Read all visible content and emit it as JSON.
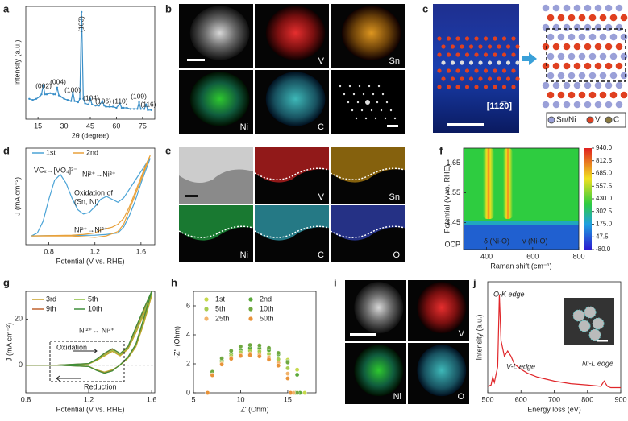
{
  "chart_data": [
    {
      "type": "line",
      "panel_label": "a",
      "xlabel": "2θ (degree)",
      "ylabel": "Intensity (a.u.)",
      "xlim": [
        8,
        82
      ],
      "ylim": [
        0,
        100
      ],
      "xticks": [
        15,
        30,
        45,
        60,
        75
      ],
      "peak_labels": [
        "(002)",
        "(004)",
        "(100)",
        "(103)",
        "(104)",
        "(106)",
        "(110)",
        "(109)",
        "(116)"
      ],
      "series": [
        {
          "color": "#3a8fc8",
          "marker": true,
          "x": [
            10,
            12,
            14,
            16,
            17,
            18,
            19,
            20,
            22,
            24,
            25,
            26,
            27,
            28,
            30,
            32,
            34,
            35,
            36,
            38,
            39,
            40,
            41,
            42,
            44,
            45,
            46,
            48,
            50,
            52,
            53,
            54,
            56,
            58,
            60,
            62,
            63,
            64,
            66,
            68,
            70,
            72,
            73,
            74,
            76,
            77,
            78,
            80
          ],
          "values": [
            18,
            17,
            18,
            20,
            22,
            30,
            22,
            22,
            23,
            22,
            22,
            28,
            21,
            20,
            18,
            17,
            16,
            24,
            16,
            15,
            18,
            95,
            18,
            14,
            13,
            18,
            13,
            12,
            12,
            16,
            12,
            11,
            11,
            11,
            10,
            14,
            10,
            10,
            10,
            9,
            9,
            9,
            15,
            9,
            9,
            13,
            8,
            8
          ]
        }
      ]
    },
    {
      "type": "line",
      "panel_label": "d",
      "xlabel": "Potential (V vs. RHE)",
      "ylabel": "J (mA cm⁻²)",
      "xlim": [
        0.6,
        1.72
      ],
      "ylim": [
        -6,
        60
      ],
      "xticks": [
        0.8,
        1.2,
        1.6
      ],
      "annotations": [
        "VCₓ→[VO₄]³⁻",
        "Ni²⁺→Ni³⁺",
        "Oxidation of",
        "(Sn, Ni)",
        "Ni²⁺→Ni³⁺"
      ],
      "series": [
        {
          "name": "1st",
          "color": "#4aa3d6",
          "x": [
            0.65,
            0.7,
            0.75,
            0.8,
            0.85,
            0.9,
            0.95,
            1.0,
            1.05,
            1.1,
            1.15,
            1.2,
            1.25,
            1.3,
            1.35,
            1.4,
            1.45,
            1.5,
            1.55,
            1.6,
            1.65,
            1.68,
            1.6,
            1.55,
            1.5,
            1.45,
            1.4,
            1.3,
            1.2,
            1.0,
            0.8,
            0.65
          ],
          "values": [
            0,
            2,
            10,
            25,
            38,
            42,
            36,
            26,
            18,
            15,
            16,
            20,
            25,
            27,
            25,
            23,
            26,
            32,
            38,
            44,
            50,
            53,
            36,
            24,
            14,
            6,
            2,
            1,
            0.5,
            0.3,
            0.2,
            0
          ]
        },
        {
          "name": "2nd",
          "color": "#e8a13a",
          "x": [
            0.65,
            0.8,
            1.0,
            1.1,
            1.2,
            1.25,
            1.3,
            1.35,
            1.4,
            1.45,
            1.5,
            1.55,
            1.6,
            1.65,
            1.68,
            1.6,
            1.5,
            1.45,
            1.4,
            1.3,
            1.2,
            1.0,
            0.65
          ],
          "values": [
            0,
            0.2,
            0.5,
            1,
            2,
            4,
            5,
            6,
            8,
            12,
            20,
            30,
            40,
            50,
            55,
            38,
            18,
            8,
            3,
            0,
            -1,
            0,
            0
          ]
        }
      ]
    },
    {
      "type": "heatmap",
      "panel_label": "f",
      "xlabel": "Raman shift (cm⁻¹)",
      "ylabel": "Potential (V vs. RHE)",
      "xlim": [
        300,
        800
      ],
      "ylim": [
        1.36,
        1.7
      ],
      "xticks": [
        400,
        600,
        800
      ],
      "yticks": [
        1.45,
        1.55,
        1.65
      ],
      "ocp_label": "OCP",
      "annotations": [
        "δ (Ni-O)",
        "ν (Ni-O)"
      ],
      "colorbar_lim": [
        -80,
        940
      ],
      "colorbar_ticks": [
        {
          "value": 940,
          "label": "940.0"
        },
        {
          "value": 812.5,
          "label": "812.5"
        },
        {
          "value": 685,
          "label": "685.0"
        },
        {
          "value": 557.5,
          "label": "557.5"
        },
        {
          "value": 430,
          "label": "430.0"
        },
        {
          "value": 302.5,
          "label": "302.5"
        },
        {
          "value": 175,
          "label": "175.0"
        },
        {
          "value": 47.5,
          "label": "47.5"
        },
        {
          "value": -80,
          "label": "-80.0"
        }
      ]
    },
    {
      "type": "line",
      "panel_label": "g",
      "xlabel": "Potential (V vs. RHE)",
      "ylabel": "J (mA cm⁻²)",
      "xlim": [
        0.8,
        1.62
      ],
      "ylim": [
        -12,
        32
      ],
      "xticks": [
        0.8,
        1.2,
        1.6
      ],
      "yticks": [
        0,
        20
      ],
      "annotations": [
        "Ni²⁺↔ Ni³⁺",
        "Oxidation",
        "Reduction"
      ],
      "series": [
        {
          "name": "3rd",
          "color": "#c8a028",
          "x": [
            0.8,
            1.0,
            1.2,
            1.25,
            1.3,
            1.35,
            1.4,
            1.45,
            1.5,
            1.55,
            1.6,
            1.55,
            1.5,
            1.45,
            1.4,
            1.35,
            1.3,
            1.25,
            1.2,
            1.0,
            0.8
          ],
          "values": [
            0,
            0,
            0.5,
            2,
            4,
            6,
            4,
            7,
            14,
            22,
            30,
            18,
            8,
            3,
            0,
            -2,
            -3,
            -2,
            -0.5,
            0,
            0
          ]
        },
        {
          "name": "5th",
          "color": "#8bbf3a",
          "x": [
            0.8,
            1.0,
            1.2,
            1.25,
            1.3,
            1.35,
            1.4,
            1.45,
            1.5,
            1.55,
            1.6,
            1.55,
            1.5,
            1.45,
            1.4,
            1.35,
            1.3,
            1.25,
            1.2,
            1.0,
            0.8
          ],
          "values": [
            0,
            0,
            0.6,
            2.2,
            4.5,
            6.5,
            4.5,
            7.5,
            15,
            23,
            31,
            19,
            8.5,
            3.2,
            0,
            -2.2,
            -3.2,
            -2.1,
            -0.5,
            0,
            0
          ]
        },
        {
          "name": "9th",
          "color": "#c0622f",
          "x": [
            0.8,
            1.0,
            1.2,
            1.25,
            1.3,
            1.35,
            1.4,
            1.45,
            1.5,
            1.55,
            1.6,
            1.55,
            1.5,
            1.45,
            1.4,
            1.35,
            1.3,
            1.25,
            1.2,
            1.0,
            0.8
          ],
          "values": [
            0,
            0,
            0.7,
            2.5,
            5,
            7,
            5,
            8,
            16,
            24,
            32,
            20,
            9,
            3.5,
            0.2,
            -2.4,
            -3.4,
            -2.2,
            -0.6,
            0,
            0
          ]
        },
        {
          "name": "10th",
          "color": "#3f8f3a",
          "x": [
            0.8,
            1.0,
            1.2,
            1.25,
            1.3,
            1.35,
            1.4,
            1.45,
            1.5,
            1.55,
            1.6,
            1.55,
            1.5,
            1.45,
            1.4,
            1.35,
            1.3,
            1.25,
            1.2,
            1.0,
            0.8
          ],
          "values": [
            0,
            0,
            0.7,
            2.6,
            5.2,
            7.2,
            5.1,
            8.2,
            16.5,
            24.5,
            32,
            20.5,
            9.2,
            3.6,
            0.2,
            -2.5,
            -3.5,
            -2.3,
            -0.6,
            0,
            0
          ]
        }
      ]
    },
    {
      "type": "scatter",
      "panel_label": "h",
      "xlabel": "Z' (Ohm)",
      "ylabel": "-Z'' (Ohm)",
      "xlim": [
        5,
        18
      ],
      "ylim": [
        0,
        7
      ],
      "xticks": [
        5,
        10,
        15
      ],
      "yticks": [
        0,
        2,
        4,
        6
      ],
      "series": [
        {
          "name": "1st",
          "color": "#c5d94a",
          "x": [
            6.5,
            7,
            8,
            9,
            10,
            11,
            12,
            13,
            14,
            15,
            16,
            16.8
          ],
          "values": [
            0,
            1.29,
            2.12,
            2.57,
            2.84,
            2.98,
            2.99,
            2.9,
            2.67,
            2.28,
            1.6,
            0
          ]
        },
        {
          "name": "2nd",
          "color": "#5aa83a",
          "x": [
            6.5,
            7,
            8,
            9,
            10,
            11,
            12,
            13,
            14,
            15,
            16,
            16.3
          ],
          "values": [
            0,
            1.35,
            2.22,
            2.7,
            2.96,
            3.09,
            3.08,
            2.95,
            2.66,
            2.16,
            1.25,
            0
          ]
        },
        {
          "name": "5th",
          "color": "#a8cc50",
          "x": [
            6.5,
            7,
            8,
            9,
            10,
            11,
            12,
            13,
            14,
            15,
            15.8
          ],
          "values": [
            0,
            1.3,
            2.12,
            2.57,
            2.8,
            2.9,
            2.86,
            2.68,
            2.32,
            1.7,
            0
          ]
        },
        {
          "name": "10th",
          "color": "#6fa840",
          "x": [
            6.5,
            7,
            8,
            9,
            10,
            11,
            12,
            13,
            14,
            15,
            16
          ],
          "values": [
            0,
            1.45,
            2.38,
            2.9,
            3.2,
            3.3,
            3.27,
            3.1,
            2.75,
            2.1,
            0
          ]
        },
        {
          "name": "25th",
          "color": "#f2b36a",
          "x": [
            6.5,
            7,
            8,
            9,
            10,
            11,
            12,
            13,
            14,
            15,
            15.6
          ],
          "values": [
            0,
            1.25,
            2.0,
            2.42,
            2.63,
            2.7,
            2.64,
            2.45,
            2.07,
            1.33,
            0
          ]
        },
        {
          "name": "50th",
          "color": "#e89238",
          "x": [
            6.5,
            7,
            8,
            9,
            10,
            11,
            12,
            13,
            14,
            15,
            15.3
          ],
          "values": [
            0,
            1.22,
            1.96,
            2.35,
            2.55,
            2.6,
            2.52,
            2.3,
            1.88,
            1.0,
            0
          ]
        }
      ]
    },
    {
      "type": "line",
      "panel_label": "j",
      "xlabel": "Energy loss (eV)",
      "ylabel": "Intensity (a.u.)",
      "xlim": [
        500,
        900
      ],
      "ylim": [
        0,
        85
      ],
      "xticks": [
        500,
        600,
        700,
        800,
        900
      ],
      "annotations": [
        "O-K edge",
        "V-L edge",
        "Ni-L edge"
      ],
      "series": [
        {
          "color": "#e0262a",
          "x": [
            500,
            510,
            515,
            520,
            530,
            535,
            540,
            550,
            560,
            570,
            580,
            600,
            620,
            650,
            700,
            750,
            800,
            840,
            850,
            855,
            860,
            870,
            900
          ],
          "values": [
            5,
            6,
            12,
            8,
            20,
            75,
            40,
            28,
            32,
            28,
            22,
            18,
            15,
            12,
            9,
            7,
            6,
            5,
            9,
            7,
            5,
            4,
            4
          ]
        }
      ]
    }
  ],
  "images": [
    {
      "panel_label": "b",
      "labels": [
        "V",
        "Sn",
        "Ni",
        "C"
      ]
    },
    {
      "panel_label": "c",
      "zone_axis": "[112̅0]",
      "legend": [
        "Sn/Ni",
        "V",
        "C"
      ]
    },
    {
      "panel_label": "e",
      "labels": [
        "V",
        "Sn",
        "Ni",
        "C",
        "O"
      ]
    },
    {
      "panel_label": "i",
      "labels": [
        "V",
        "Ni",
        "O"
      ]
    }
  ]
}
